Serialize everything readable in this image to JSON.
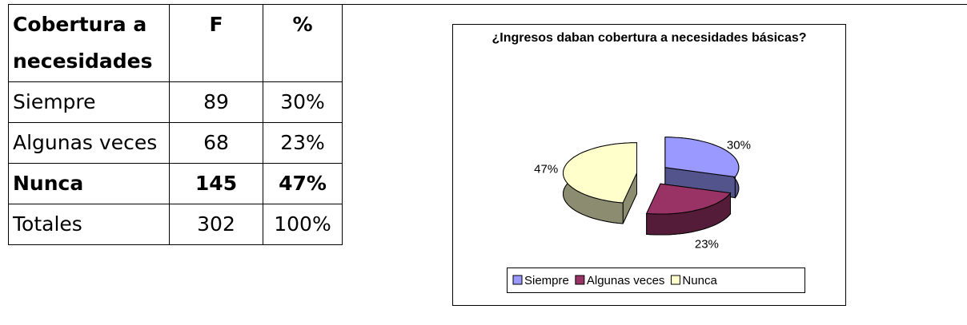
{
  "table": {
    "header": [
      "Cobertura a necesidades",
      "F",
      "%"
    ],
    "rows": [
      [
        "Siempre",
        89,
        "30%"
      ],
      [
        "Algunas veces",
        68,
        "23%"
      ],
      [
        "Nunca",
        145,
        "47%"
      ],
      [
        "Totales",
        302,
        "100%"
      ]
    ]
  },
  "chart_data": {
    "type": "pie",
    "title": "¿Ingresos daban cobertura a necesidades básicas?",
    "categories": [
      "Siempre",
      "Algunas veces",
      "Nunca"
    ],
    "values": [
      30,
      23,
      47
    ],
    "value_labels": [
      "30%",
      "23%",
      "47%"
    ],
    "colors": [
      "#9999ff",
      "#993366",
      "#ffffcc"
    ],
    "legend": "bottom"
  }
}
